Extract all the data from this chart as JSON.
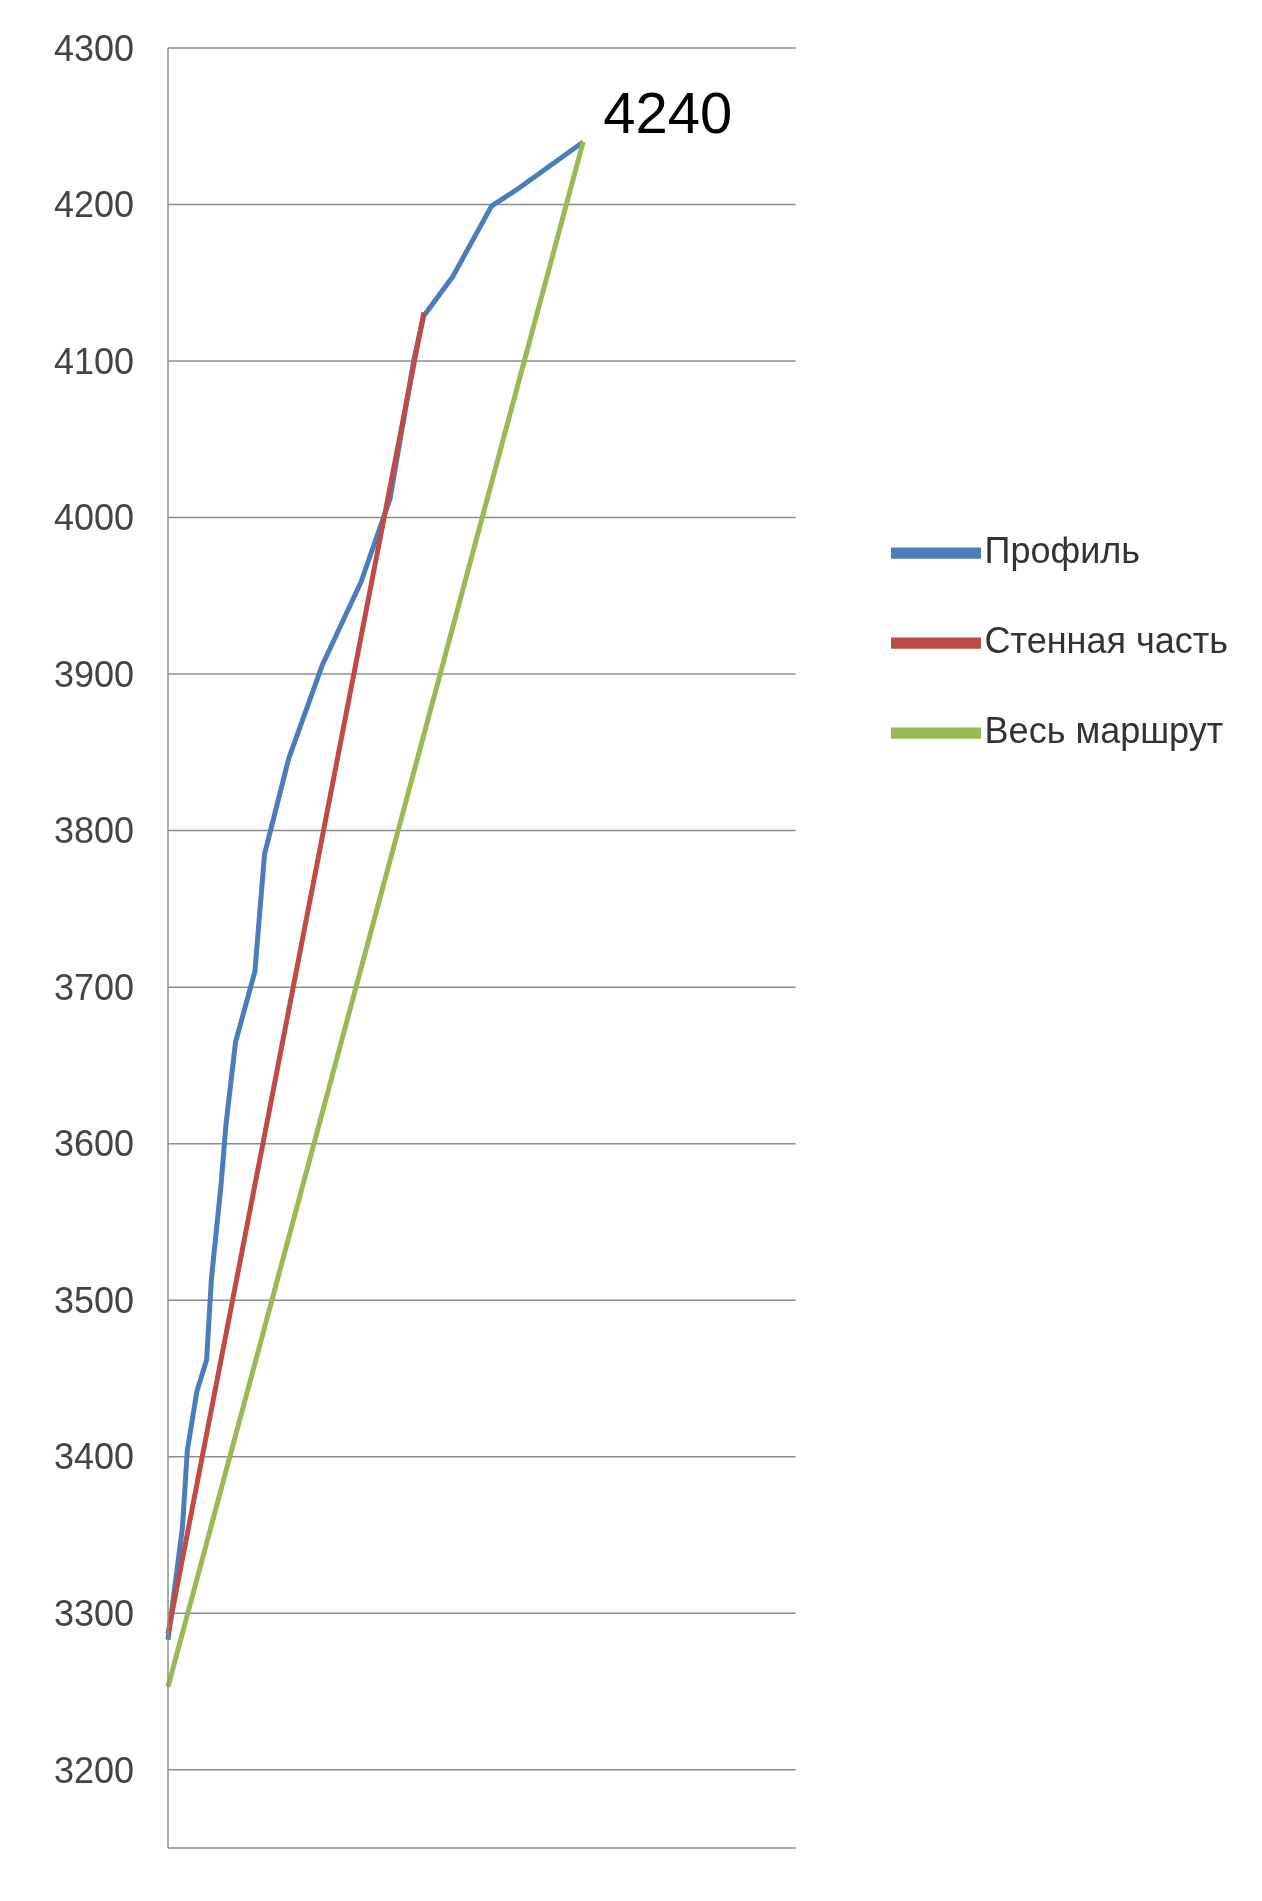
{
  "chart_data": {
    "type": "line",
    "categories": [
      null,
      null,
      null,
      null,
      null,
      null,
      null,
      null,
      null,
      null,
      null,
      null,
      null,
      null,
      null,
      null,
      null,
      null,
      null,
      null,
      null,
      null,
      null,
      null,
      null,
      null,
      null,
      null,
      null,
      null,
      null,
      null,
      null,
      null,
      null,
      null,
      null,
      null,
      null,
      null,
      null,
      null,
      null,
      null,
      null,
      null,
      null,
      null,
      null,
      null,
      null,
      null,
      null,
      null,
      null,
      null,
      null,
      null,
      null,
      null,
      null,
      null,
      null,
      null,
      null,
      null,
      null,
      null,
      null,
      null,
      null,
      null,
      null,
      null,
      null,
      null,
      null,
      null,
      null,
      null,
      null,
      null,
      null,
      null,
      null,
      null,
      null,
      null,
      null,
      null,
      null,
      null,
      null,
      null,
      null,
      null,
      null,
      null,
      null,
      null,
      null,
      null,
      null,
      null,
      null,
      null,
      null,
      null,
      null,
      null,
      null,
      null,
      null,
      null,
      null,
      null,
      null,
      null,
      null,
      null,
      null,
      null,
      null,
      null,
      null,
      null,
      null,
      null,
      null,
      null,
      null
    ],
    "series": [
      {
        "name": "Профиль",
        "color": "#4a7ebb",
        "values": [
          3283,
          null,
          null,
          3355,
          3404,
          null,
          3442,
          null,
          3462,
          3514,
          null,
          3574,
          3612,
          null,
          3665,
          null,
          null,
          null,
          3710,
          null,
          3785,
          null,
          null,
          null,
          null,
          3846,
          null,
          null,
          null,
          null,
          null,
          null,
          3906,
          null,
          null,
          null,
          null,
          null,
          null,
          null,
          3959,
          null,
          null,
          null,
          null,
          null,
          4012,
          null,
          null,
          null,
          null,
          4102,
          null,
          4129,
          null,
          null,
          null,
          null,
          null,
          4154,
          null,
          null,
          null,
          null,
          null,
          null,
          null,
          4199,
          null,
          null,
          null,
          null,
          4209,
          null,
          null,
          null,
          null,
          null,
          null,
          null,
          null,
          null,
          null,
          null,
          null,
          null,
          4240,
          null,
          null,
          null,
          null,
          null,
          null,
          null,
          null,
          null,
          null,
          null,
          null,
          null,
          null,
          null,
          null,
          null,
          null,
          null,
          null,
          null,
          null,
          null,
          null,
          null,
          null,
          null,
          null,
          null,
          null,
          null,
          null,
          null,
          null,
          null,
          null,
          null,
          null,
          null,
          null,
          null,
          null,
          null,
          null
        ]
      },
      {
        "name": "Стенная часть",
        "color": "#be4b48",
        "values": [
          3287,
          null,
          null,
          null,
          null,
          null,
          null,
          null,
          null,
          null,
          null,
          null,
          null,
          null,
          null,
          null,
          null,
          null,
          null,
          null,
          null,
          null,
          null,
          null,
          null,
          null,
          null,
          null,
          null,
          null,
          null,
          null,
          null,
          null,
          null,
          null,
          null,
          null,
          null,
          null,
          null,
          null,
          null,
          null,
          null,
          null,
          null,
          null,
          null,
          null,
          null,
          null,
          null,
          4131,
          null,
          null,
          null,
          null,
          null,
          null,
          null,
          null,
          null,
          null,
          null,
          null,
          null,
          null,
          null,
          null,
          null,
          null,
          null,
          null,
          null,
          null,
          null,
          null,
          null,
          null,
          null,
          null,
          null,
          null,
          null,
          null,
          null,
          null,
          null,
          null,
          null,
          null,
          null,
          null,
          null,
          null,
          null,
          null,
          null,
          null,
          null,
          null,
          null,
          null,
          null,
          null,
          null,
          null,
          null,
          null,
          null,
          null,
          null,
          null,
          null,
          null,
          null,
          null,
          null,
          null,
          null,
          null,
          null,
          null,
          null,
          null,
          null,
          null,
          null,
          null,
          null
        ]
      },
      {
        "name": "Весь маршрут",
        "color": "#98b954",
        "values": [
          3253,
          null,
          null,
          null,
          null,
          null,
          null,
          null,
          null,
          null,
          null,
          null,
          null,
          null,
          null,
          null,
          null,
          null,
          null,
          null,
          null,
          null,
          null,
          null,
          null,
          null,
          null,
          null,
          null,
          null,
          null,
          null,
          null,
          null,
          null,
          null,
          null,
          null,
          null,
          null,
          null,
          null,
          null,
          null,
          null,
          null,
          null,
          null,
          null,
          null,
          null,
          null,
          null,
          null,
          null,
          null,
          null,
          null,
          null,
          null,
          null,
          null,
          null,
          null,
          null,
          null,
          null,
          null,
          null,
          null,
          null,
          null,
          null,
          null,
          null,
          null,
          null,
          null,
          null,
          null,
          null,
          null,
          null,
          null,
          null,
          null,
          4240,
          null,
          null,
          null,
          null,
          null,
          null,
          null,
          null,
          null,
          null,
          null,
          null,
          null,
          null,
          null,
          null,
          null,
          null,
          null,
          null,
          null,
          null,
          null,
          null,
          null,
          null,
          null,
          null,
          null,
          null,
          null,
          null,
          null,
          null,
          null,
          null,
          null,
          null,
          null,
          null,
          null,
          null,
          null,
          null
        ]
      }
    ],
    "ylim": [
      3150,
      4300
    ],
    "yticks": [
      3200,
      3300,
      3400,
      3500,
      3600,
      3700,
      3800,
      3900,
      4000,
      4100,
      4200,
      4300
    ],
    "grid": "y",
    "legend": "right",
    "marker": "none",
    "line_style": "solid",
    "tick_labels": "y",
    "annotations": [
      "4240"
    ]
  }
}
